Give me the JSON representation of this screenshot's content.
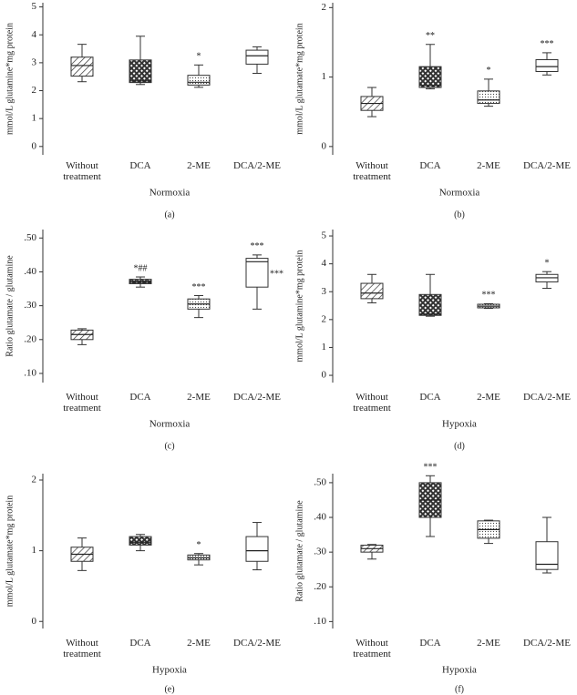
{
  "chart_data": [
    {
      "type": "box",
      "panel_label": "(a)",
      "ylabel": "mmol/L glutamine*mg protein",
      "xlabel": "Normoxia",
      "categories": [
        "Without treatment",
        "DCA",
        "2-ME",
        "DCA/2-ME"
      ],
      "boxes": [
        {
          "min": 2.32,
          "q1": 2.52,
          "median": 2.9,
          "q3": 3.2,
          "max": 3.66
        },
        {
          "min": 2.22,
          "q1": 2.29,
          "median": 2.35,
          "q3": 3.1,
          "max": 3.95
        },
        {
          "min": 2.12,
          "q1": 2.2,
          "median": 2.3,
          "q3": 2.55,
          "max": 2.92
        },
        {
          "min": 2.62,
          "q1": 2.95,
          "median": 3.25,
          "q3": 3.45,
          "max": 3.57
        }
      ],
      "annotations": [
        {
          "category": 2,
          "text": "*"
        }
      ],
      "ylim": [
        -0.3,
        5.15
      ],
      "yticks": [
        0,
        1,
        2,
        3,
        4,
        5
      ]
    },
    {
      "type": "box",
      "panel_label": "(b)",
      "ylabel": "mmol/L glutamate*mg protein",
      "xlabel": "Normoxia",
      "categories": [
        "Without treatment",
        "DCA",
        "2-ME",
        "DCA/2-ME"
      ],
      "boxes": [
        {
          "min": 0.43,
          "q1": 0.52,
          "median": 0.62,
          "q3": 0.72,
          "max": 0.85
        },
        {
          "min": 0.83,
          "q1": 0.85,
          "median": 0.88,
          "q3": 1.15,
          "max": 1.47
        },
        {
          "min": 0.58,
          "q1": 0.62,
          "median": 0.67,
          "q3": 0.8,
          "max": 0.97
        },
        {
          "min": 1.03,
          "q1": 1.08,
          "median": 1.15,
          "q3": 1.25,
          "max": 1.35
        }
      ],
      "annotations": [
        {
          "category": 1,
          "text": "**"
        },
        {
          "category": 2,
          "text": "*"
        },
        {
          "category": 3,
          "text": "***"
        }
      ],
      "ylim": [
        -0.12,
        2.07
      ],
      "yticks": [
        0,
        1,
        2
      ]
    },
    {
      "type": "box",
      "panel_label": "(c)",
      "ylabel": "Ratio glutamate / glutamine",
      "xlabel": "Normoxia",
      "categories": [
        "Without treatment",
        "DCA",
        "2-ME",
        "DCA/2-ME"
      ],
      "boxes": [
        {
          "min": 0.185,
          "q1": 0.2,
          "median": 0.215,
          "q3": 0.228,
          "max": 0.232
        },
        {
          "min": 0.355,
          "q1": 0.365,
          "median": 0.37,
          "q3": 0.378,
          "max": 0.385
        },
        {
          "min": 0.265,
          "q1": 0.29,
          "median": 0.305,
          "q3": 0.32,
          "max": 0.33
        },
        {
          "min": 0.29,
          "q1": 0.355,
          "median": 0.43,
          "q3": 0.44,
          "max": 0.45
        }
      ],
      "annotations": [
        {
          "category": 1,
          "text": "*##"
        },
        {
          "category": 2,
          "text": "***"
        },
        {
          "category": 3,
          "text": "***"
        },
        {
          "category": 3,
          "text": "***",
          "side": "right"
        }
      ],
      "ylim": [
        0.073,
        0.525
      ],
      "yticks": [
        {
          "value": 0.1,
          "label": ".10"
        },
        {
          "value": 0.2,
          "label": ".20"
        },
        {
          "value": 0.3,
          "label": ".30"
        },
        {
          "value": 0.4,
          "label": ".40"
        },
        {
          "value": 0.5,
          "label": ".50"
        }
      ]
    },
    {
      "type": "box",
      "panel_label": "(d)",
      "ylabel": "mmol/L glutamine*mg protein",
      "xlabel": "Hypoxia",
      "categories": [
        "Without treatment",
        "DCA",
        "2-ME",
        "DCA/2-ME"
      ],
      "boxes": [
        {
          "min": 2.6,
          "q1": 2.75,
          "median": 2.95,
          "q3": 3.3,
          "max": 3.62
        },
        {
          "min": 2.12,
          "q1": 2.15,
          "median": 2.2,
          "q3": 2.9,
          "max": 3.62
        },
        {
          "min": 2.4,
          "q1": 2.42,
          "median": 2.48,
          "q3": 2.55,
          "max": 2.57
        },
        {
          "min": 3.12,
          "q1": 3.35,
          "median": 3.5,
          "q3": 3.62,
          "max": 3.72
        }
      ],
      "annotations": [
        {
          "category": 2,
          "text": "***"
        },
        {
          "category": 3,
          "text": "*"
        }
      ],
      "ylim": [
        -0.26,
        5.23
      ],
      "yticks": [
        0,
        1,
        2,
        3,
        4,
        5
      ]
    },
    {
      "type": "box",
      "panel_label": "(e)",
      "ylabel": "mmol/L glutamate*mg protein",
      "xlabel": "Hypoxia",
      "categories": [
        "Without treatment",
        "DCA",
        "2-ME",
        "DCA/2-ME"
      ],
      "boxes": [
        {
          "min": 0.72,
          "q1": 0.85,
          "median": 0.95,
          "q3": 1.05,
          "max": 1.18
        },
        {
          "min": 1.0,
          "q1": 1.08,
          "median": 1.12,
          "q3": 1.2,
          "max": 1.23
        },
        {
          "min": 0.8,
          "q1": 0.87,
          "median": 0.9,
          "q3": 0.94,
          "max": 0.96
        },
        {
          "min": 0.73,
          "q1": 0.85,
          "median": 1.0,
          "q3": 1.2,
          "max": 1.4
        }
      ],
      "annotations": [
        {
          "category": 2,
          "text": "*"
        }
      ],
      "ylim": [
        -0.1,
        2.09
      ],
      "yticks": [
        0,
        1,
        2
      ]
    },
    {
      "type": "box",
      "panel_label": "(f)",
      "ylabel": "Ratio glutamate / glutamine",
      "xlabel": "Hypoxia",
      "categories": [
        "Without treatment",
        "DCA",
        "2-ME",
        "DCA/2-ME"
      ],
      "boxes": [
        {
          "min": 0.28,
          "q1": 0.3,
          "median": 0.31,
          "q3": 0.32,
          "max": 0.322
        },
        {
          "min": 0.345,
          "q1": 0.4,
          "median": 0.45,
          "q3": 0.5,
          "max": 0.52
        },
        {
          "min": 0.325,
          "q1": 0.34,
          "median": 0.365,
          "q3": 0.39,
          "max": 0.392
        },
        {
          "min": 0.24,
          "q1": 0.25,
          "median": 0.265,
          "q3": 0.33,
          "max": 0.4
        }
      ],
      "annotations": [
        {
          "category": 1,
          "text": "***"
        }
      ],
      "ylim": [
        0.08,
        0.526
      ],
      "yticks": [
        {
          "value": 0.1,
          "label": ".10"
        },
        {
          "value": 0.2,
          "label": ".20"
        },
        {
          "value": 0.3,
          "label": ".30"
        },
        {
          "value": 0.4,
          "label": ".40"
        },
        {
          "value": 0.5,
          "label": ".50"
        }
      ]
    }
  ]
}
